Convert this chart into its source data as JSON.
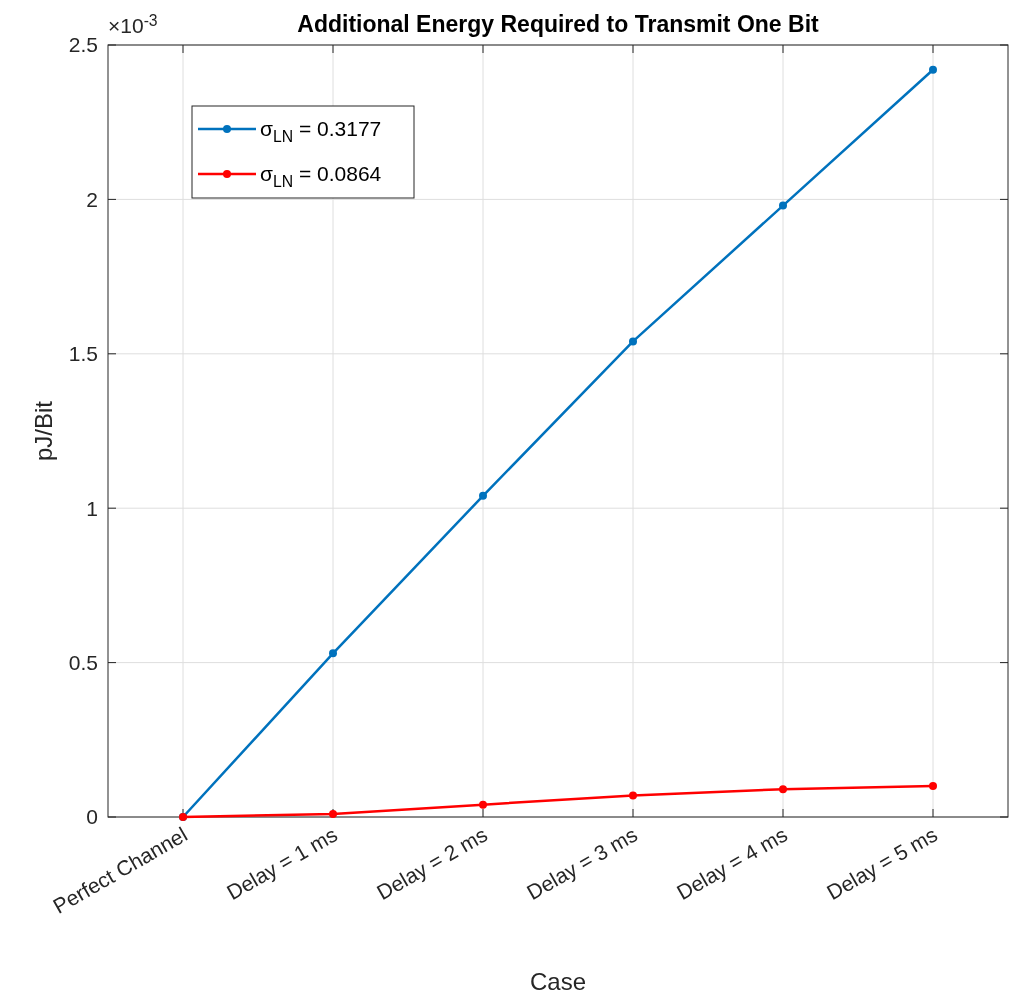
{
  "chart_data": {
    "type": "line",
    "title": "Additional Energy Required to Transmit One Bit",
    "xlabel": "Case",
    "ylabel": "pJ/Bit",
    "annotations": [
      "×10$^{-3}$"
    ],
    "categories": [
      "Perfect Channel",
      "Delay = 1 ms",
      "Delay = 2 ms",
      "Delay = 3 ms",
      "Delay = 4 ms",
      "Delay = 5 ms"
    ],
    "series": [
      {
        "name": "σ$_{LN}$ = 0.3177",
        "color": "#0072bd",
        "values": [
          0,
          0.53,
          1.04,
          1.54,
          1.98,
          2.42
        ]
      },
      {
        "name": "σ$_{LN}$ = 0.0864",
        "color": "#ff0000",
        "values": [
          0,
          0.01,
          0.04,
          0.07,
          0.09,
          0.1
        ]
      }
    ],
    "ylim": [
      0,
      2.5
    ],
    "yticks": [
      0,
      0.5,
      1,
      1.5,
      2,
      2.5
    ],
    "grid": true,
    "legend": "top left",
    "marker": "circle",
    "line_style": "solid"
  }
}
